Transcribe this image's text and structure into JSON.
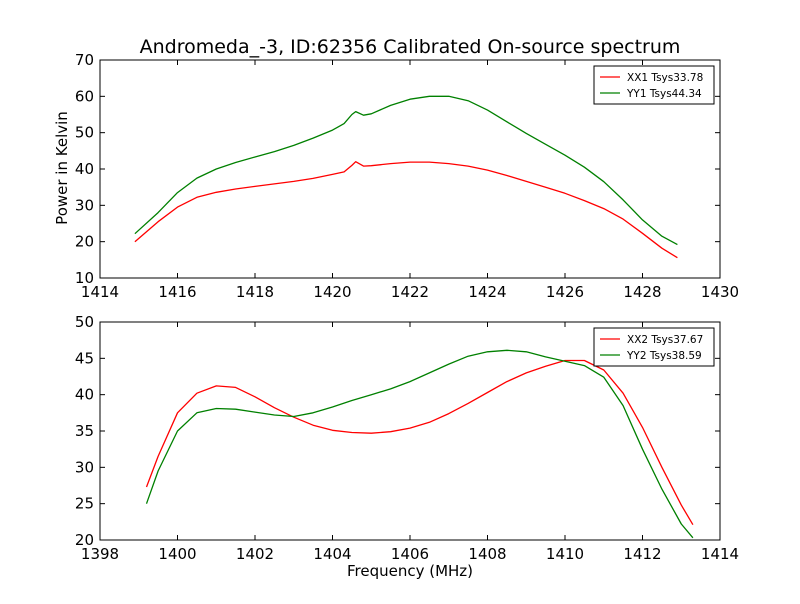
{
  "chart_data": [
    {
      "type": "line",
      "title": "Andromeda_-3, ID:62356 Calibrated On-source spectrum",
      "xlabel": "",
      "ylabel": "Power in Kelvin",
      "xlim": [
        1414,
        1430
      ],
      "ylim": [
        10,
        70
      ],
      "xticks": [
        1414,
        1416,
        1418,
        1420,
        1422,
        1424,
        1426,
        1428,
        1430
      ],
      "yticks": [
        10,
        20,
        30,
        40,
        50,
        60,
        70
      ],
      "grid": false,
      "legend": "top-right",
      "series": [
        {
          "name": "XX1 Tsys33.78",
          "color": "#ff0000",
          "x": [
            1414.9,
            1415.5,
            1416.0,
            1416.5,
            1417.0,
            1417.5,
            1418.0,
            1418.5,
            1419.0,
            1419.5,
            1420.0,
            1420.3,
            1420.5,
            1420.6,
            1420.8,
            1421.0,
            1421.5,
            1422.0,
            1422.5,
            1423.0,
            1423.5,
            1424.0,
            1424.5,
            1425.0,
            1425.5,
            1426.0,
            1426.5,
            1427.0,
            1427.5,
            1428.0,
            1428.5,
            1428.9
          ],
          "y": [
            20.0,
            25.5,
            29.5,
            32.2,
            33.6,
            34.5,
            35.2,
            35.9,
            36.6,
            37.4,
            38.5,
            39.2,
            41.0,
            42.0,
            40.8,
            40.9,
            41.5,
            41.9,
            41.9,
            41.5,
            40.8,
            39.7,
            38.2,
            36.6,
            35.0,
            33.3,
            31.3,
            29.1,
            26.2,
            22.3,
            18.2,
            15.6
          ]
        },
        {
          "name": "YY1 Tsys44.34",
          "color": "#008000",
          "x": [
            1414.9,
            1415.5,
            1416.0,
            1416.5,
            1417.0,
            1417.5,
            1418.0,
            1418.5,
            1419.0,
            1419.5,
            1420.0,
            1420.3,
            1420.5,
            1420.6,
            1420.8,
            1421.0,
            1421.5,
            1422.0,
            1422.5,
            1423.0,
            1423.5,
            1424.0,
            1424.5,
            1425.0,
            1425.5,
            1426.0,
            1426.5,
            1427.0,
            1427.5,
            1428.0,
            1428.5,
            1428.9
          ],
          "y": [
            22.2,
            28.0,
            33.5,
            37.5,
            40.0,
            41.8,
            43.3,
            44.8,
            46.5,
            48.5,
            50.7,
            52.5,
            55.0,
            55.8,
            54.8,
            55.2,
            57.5,
            59.2,
            60.0,
            60.0,
            58.8,
            56.2,
            53.0,
            49.8,
            46.8,
            43.8,
            40.5,
            36.5,
            31.5,
            26.0,
            21.5,
            19.2
          ]
        }
      ]
    },
    {
      "type": "line",
      "title": "",
      "xlabel": "Frequency (MHz)",
      "ylabel": "",
      "xlim": [
        1398,
        1414
      ],
      "ylim": [
        20,
        50
      ],
      "xticks": [
        1398,
        1400,
        1402,
        1404,
        1406,
        1408,
        1410,
        1412,
        1414
      ],
      "yticks": [
        20,
        25,
        30,
        35,
        40,
        45,
        50
      ],
      "grid": false,
      "legend": "top-right",
      "series": [
        {
          "name": "XX2 Tsys37.67",
          "color": "#ff0000",
          "x": [
            1399.2,
            1399.5,
            1400.0,
            1400.5,
            1401.0,
            1401.5,
            1402.0,
            1402.5,
            1403.0,
            1403.5,
            1404.0,
            1404.5,
            1405.0,
            1405.5,
            1406.0,
            1406.5,
            1407.0,
            1407.5,
            1408.0,
            1408.5,
            1409.0,
            1409.5,
            1410.0,
            1410.5,
            1411.0,
            1411.5,
            1412.0,
            1412.5,
            1413.0,
            1413.3
          ],
          "y": [
            27.3,
            31.5,
            37.5,
            40.2,
            41.2,
            41.0,
            39.7,
            38.2,
            36.9,
            35.8,
            35.1,
            34.8,
            34.7,
            34.9,
            35.4,
            36.2,
            37.4,
            38.8,
            40.3,
            41.8,
            43.0,
            43.9,
            44.7,
            44.7,
            43.4,
            40.2,
            35.5,
            30.0,
            24.8,
            22.1
          ]
        },
        {
          "name": "YY2 Tsys38.59",
          "color": "#008000",
          "x": [
            1399.2,
            1399.5,
            1400.0,
            1400.5,
            1401.0,
            1401.5,
            1402.0,
            1402.5,
            1403.0,
            1403.5,
            1404.0,
            1404.5,
            1405.0,
            1405.5,
            1406.0,
            1406.5,
            1407.0,
            1407.5,
            1408.0,
            1408.5,
            1409.0,
            1409.5,
            1410.0,
            1410.5,
            1411.0,
            1411.5,
            1412.0,
            1412.5,
            1413.0,
            1413.3
          ],
          "y": [
            25.0,
            29.5,
            35.0,
            37.5,
            38.1,
            38.0,
            37.6,
            37.2,
            37.0,
            37.5,
            38.3,
            39.2,
            40.0,
            40.8,
            41.8,
            43.0,
            44.2,
            45.3,
            45.9,
            46.1,
            45.9,
            45.2,
            44.6,
            44.0,
            42.4,
            38.5,
            32.5,
            27.0,
            22.2,
            20.3
          ]
        }
      ]
    }
  ]
}
